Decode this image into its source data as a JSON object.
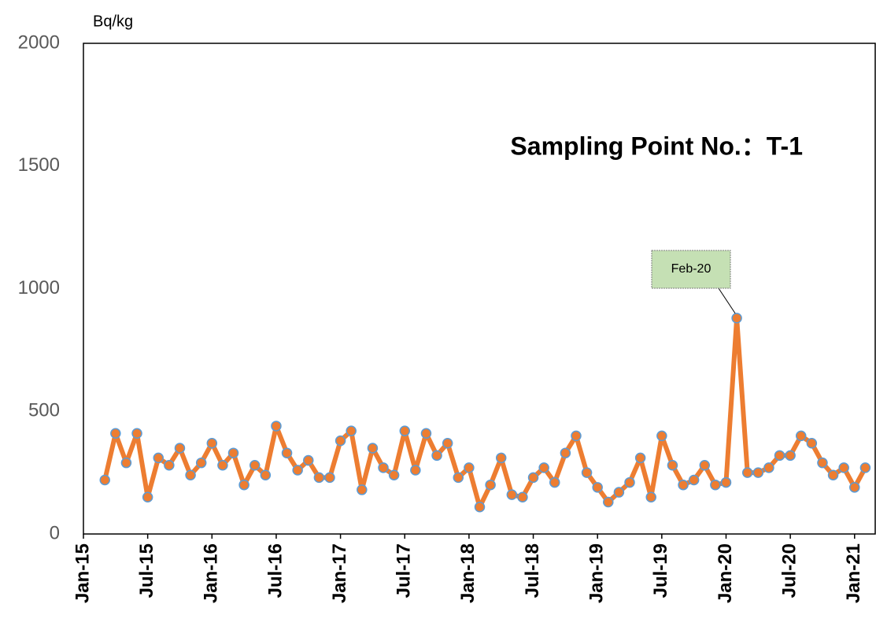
{
  "chart_data": {
    "type": "line",
    "title": "Sampling Point No.：T-1",
    "y_label": "Bq/kg",
    "x": [
      "2015-03",
      "2015-04",
      "2015-05",
      "2015-06",
      "2015-07",
      "2015-08",
      "2015-09",
      "2015-10",
      "2015-11",
      "2015-12",
      "2016-01",
      "2016-02",
      "2016-03",
      "2016-04",
      "2016-05",
      "2016-06",
      "2016-07",
      "2016-08",
      "2016-09",
      "2016-10",
      "2016-11",
      "2016-12",
      "2017-01",
      "2017-02",
      "2017-03",
      "2017-04",
      "2017-05",
      "2017-06",
      "2017-07",
      "2017-08",
      "2017-09",
      "2017-10",
      "2017-11",
      "2017-12",
      "2018-01",
      "2018-02",
      "2018-03",
      "2018-04",
      "2018-05",
      "2018-06",
      "2018-07",
      "2018-08",
      "2018-09",
      "2018-10",
      "2018-11",
      "2018-12",
      "2019-01",
      "2019-02",
      "2019-03",
      "2019-04",
      "2019-05",
      "2019-06",
      "2019-07",
      "2019-08",
      "2019-09",
      "2019-10",
      "2019-11",
      "2019-12",
      "2020-01",
      "2020-02",
      "2020-03",
      "2020-04",
      "2020-05",
      "2020-06",
      "2020-07",
      "2020-08",
      "2020-09",
      "2020-10",
      "2020-11",
      "2020-12",
      "2021-01",
      "2021-02"
    ],
    "series": [
      {
        "color": "#ED7D31",
        "marker_edge_color": "#5B9BD5",
        "values": [
          220,
          410,
          290,
          410,
          150,
          310,
          280,
          350,
          240,
          290,
          370,
          280,
          330,
          200,
          280,
          240,
          440,
          330,
          260,
          300,
          230,
          230,
          380,
          420,
          180,
          350,
          270,
          240,
          420,
          260,
          410,
          320,
          370,
          230,
          270,
          110,
          200,
          310,
          160,
          150,
          230,
          270,
          210,
          330,
          400,
          250,
          190,
          130,
          170,
          210,
          310,
          150,
          400,
          280,
          200,
          220,
          280,
          200,
          210,
          880,
          250,
          250,
          270,
          320,
          320,
          400,
          370,
          290,
          240,
          270,
          190,
          270
        ]
      }
    ],
    "annotation": {
      "text": "Feb-20",
      "x": "2020-02"
    },
    "xlim": [
      "2015-01",
      "2021-03"
    ],
    "xticks": [
      {
        "value": "2015-01",
        "label": "Jan-15"
      },
      {
        "value": "2015-07",
        "label": "Jul-15"
      },
      {
        "value": "2016-01",
        "label": "Jan-16"
      },
      {
        "value": "2016-07",
        "label": "Jul-16"
      },
      {
        "value": "2017-01",
        "label": "Jan-17"
      },
      {
        "value": "2017-07",
        "label": "Jul-17"
      },
      {
        "value": "2018-01",
        "label": "Jan-18"
      },
      {
        "value": "2018-07",
        "label": "Jul-18"
      },
      {
        "value": "2019-01",
        "label": "Jan-19"
      },
      {
        "value": "2019-07",
        "label": "Jul-19"
      },
      {
        "value": "2020-01",
        "label": "Jan-20"
      },
      {
        "value": "2020-07",
        "label": "Jul-20"
      },
      {
        "value": "2021-01",
        "label": "Jan-21"
      }
    ],
    "ylim": [
      0,
      2000
    ],
    "yticks": [
      0,
      500,
      1000,
      1500,
      2000
    ],
    "grid": false
  }
}
